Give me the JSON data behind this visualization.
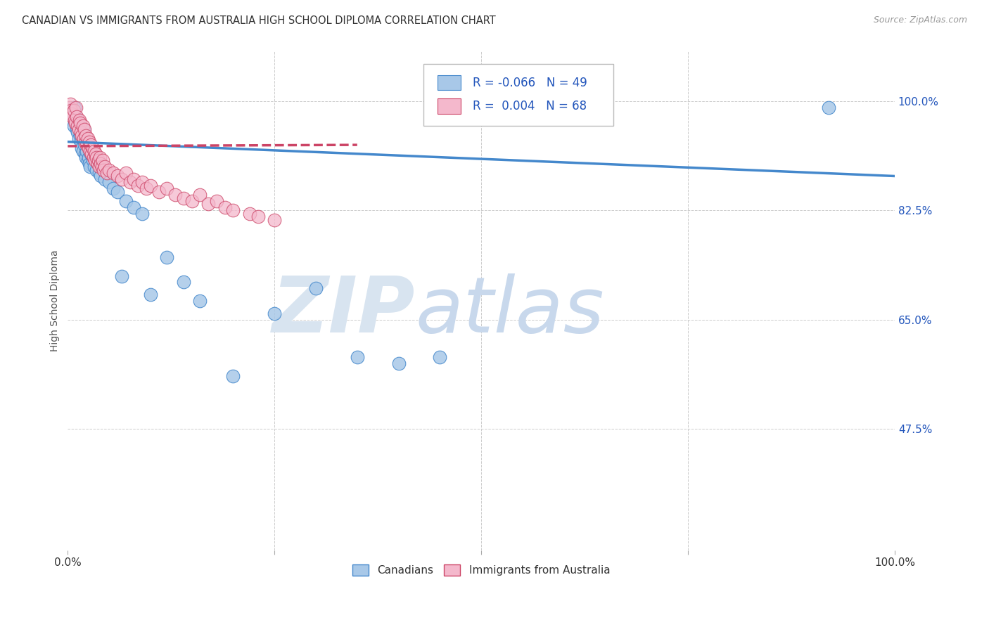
{
  "title": "CANADIAN VS IMMIGRANTS FROM AUSTRALIA HIGH SCHOOL DIPLOMA CORRELATION CHART",
  "source": "Source: ZipAtlas.com",
  "ylabel": "High School Diploma",
  "ytick_labels": [
    "100.0%",
    "82.5%",
    "65.0%",
    "47.5%"
  ],
  "ytick_values": [
    1.0,
    0.825,
    0.65,
    0.475
  ],
  "legend_blue_r": "-0.066",
  "legend_blue_n": "49",
  "legend_pink_r": "0.004",
  "legend_pink_n": "68",
  "legend_blue_label": "Canadians",
  "legend_pink_label": "Immigrants from Australia",
  "blue_scatter_x": [
    0.005,
    0.006,
    0.007,
    0.008,
    0.009,
    0.01,
    0.011,
    0.012,
    0.013,
    0.014,
    0.015,
    0.016,
    0.017,
    0.018,
    0.019,
    0.02,
    0.021,
    0.022,
    0.023,
    0.024,
    0.025,
    0.026,
    0.027,
    0.028,
    0.03,
    0.032,
    0.035,
    0.038,
    0.04,
    0.042,
    0.045,
    0.05,
    0.055,
    0.06,
    0.065,
    0.07,
    0.08,
    0.09,
    0.1,
    0.12,
    0.14,
    0.16,
    0.2,
    0.25,
    0.3,
    0.35,
    0.4,
    0.45,
    0.92
  ],
  "blue_scatter_y": [
    0.97,
    0.98,
    0.96,
    0.99,
    0.975,
    0.965,
    0.955,
    0.95,
    0.94,
    0.96,
    0.945,
    0.935,
    0.925,
    0.92,
    0.955,
    0.93,
    0.915,
    0.91,
    0.92,
    0.905,
    0.91,
    0.9,
    0.895,
    0.915,
    0.905,
    0.895,
    0.89,
    0.885,
    0.88,
    0.895,
    0.875,
    0.87,
    0.86,
    0.855,
    0.72,
    0.84,
    0.83,
    0.82,
    0.69,
    0.75,
    0.71,
    0.68,
    0.56,
    0.66,
    0.7,
    0.59,
    0.58,
    0.59,
    0.99
  ],
  "pink_scatter_x": [
    0.002,
    0.003,
    0.004,
    0.005,
    0.006,
    0.007,
    0.008,
    0.009,
    0.01,
    0.011,
    0.012,
    0.013,
    0.014,
    0.015,
    0.016,
    0.017,
    0.018,
    0.019,
    0.02,
    0.021,
    0.022,
    0.023,
    0.024,
    0.025,
    0.026,
    0.027,
    0.028,
    0.029,
    0.03,
    0.031,
    0.032,
    0.033,
    0.034,
    0.035,
    0.036,
    0.037,
    0.038,
    0.039,
    0.04,
    0.041,
    0.042,
    0.043,
    0.045,
    0.047,
    0.05,
    0.055,
    0.06,
    0.065,
    0.07,
    0.075,
    0.08,
    0.085,
    0.09,
    0.095,
    0.1,
    0.11,
    0.12,
    0.13,
    0.14,
    0.15,
    0.16,
    0.17,
    0.18,
    0.19,
    0.2,
    0.22,
    0.23,
    0.25
  ],
  "pink_scatter_y": [
    0.99,
    0.995,
    0.985,
    0.98,
    0.975,
    0.985,
    0.97,
    0.965,
    0.99,
    0.975,
    0.96,
    0.955,
    0.97,
    0.965,
    0.95,
    0.945,
    0.96,
    0.94,
    0.955,
    0.935,
    0.945,
    0.93,
    0.94,
    0.925,
    0.935,
    0.92,
    0.93,
    0.915,
    0.925,
    0.91,
    0.92,
    0.905,
    0.915,
    0.91,
    0.9,
    0.905,
    0.895,
    0.91,
    0.9,
    0.895,
    0.905,
    0.89,
    0.895,
    0.885,
    0.89,
    0.885,
    0.88,
    0.875,
    0.885,
    0.87,
    0.875,
    0.865,
    0.87,
    0.86,
    0.865,
    0.855,
    0.86,
    0.85,
    0.845,
    0.84,
    0.85,
    0.835,
    0.84,
    0.83,
    0.825,
    0.82,
    0.815,
    0.81
  ],
  "blue_color": "#a8c8e8",
  "pink_color": "#f4b8cc",
  "blue_line_color": "#4488cc",
  "pink_line_color": "#cc4466",
  "grid_color": "#cccccc",
  "watermark_zip_color": "#d0dce8",
  "watermark_atlas_color": "#c0d0e4",
  "background_color": "#ffffff",
  "title_fontsize": 11,
  "axis_label_fontsize": 10
}
